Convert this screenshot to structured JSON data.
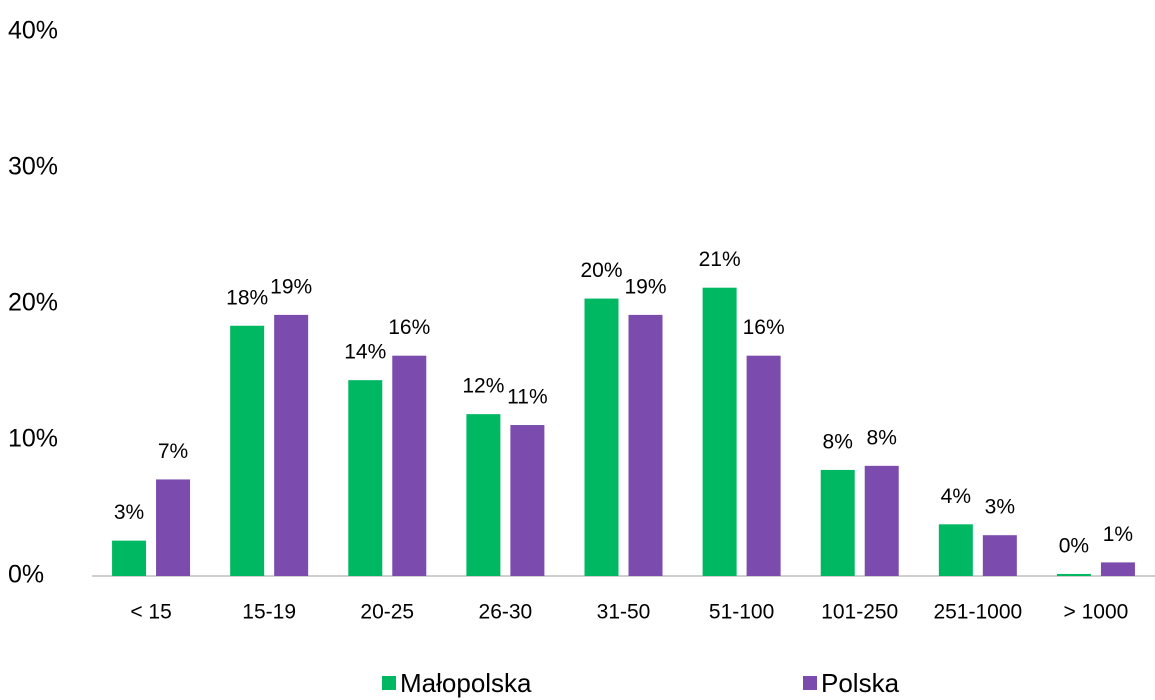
{
  "chart_data": {
    "type": "bar",
    "categories": [
      "< 15",
      "15-19",
      "20-25",
      "26-30",
      "31-50",
      "51-100",
      "101-250",
      "251-1000",
      "> 1000"
    ],
    "series": [
      {
        "name": "Małopolska",
        "color": "#00b862",
        "values": [
          2.6,
          18.4,
          14.4,
          11.9,
          20.4,
          21.2,
          7.8,
          3.8,
          0.15
        ],
        "value_labels": [
          "3%",
          "18%",
          "14%",
          "12%",
          "20%",
          "21%",
          "8%",
          "4%",
          "0%"
        ]
      },
      {
        "name": "Polska",
        "color": "#7b4bad",
        "values": [
          7.1,
          19.2,
          16.2,
          11.1,
          19.2,
          16.2,
          8.1,
          3.0,
          1.0
        ],
        "value_labels": [
          "7%",
          "19%",
          "16%",
          "11%",
          "19%",
          "16%",
          "8%",
          "3%",
          "1%"
        ]
      }
    ],
    "ylim": [
      0,
      40
    ],
    "yticks": [
      {
        "value": 0,
        "label": "0%"
      },
      {
        "value": 10,
        "label": "10%"
      },
      {
        "value": 20,
        "label": "20%"
      },
      {
        "value": 30,
        "label": "30%"
      },
      {
        "value": 40,
        "label": "40%"
      }
    ],
    "grid": false,
    "legend": "bottom"
  }
}
